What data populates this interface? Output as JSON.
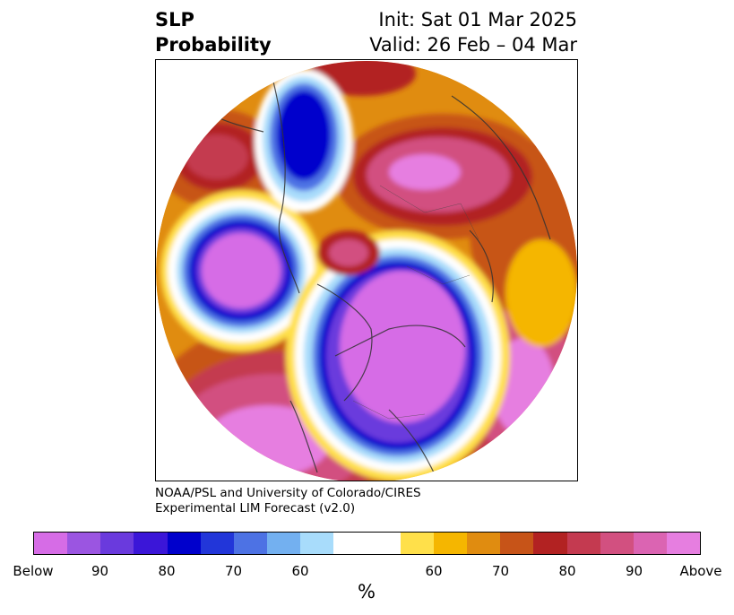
{
  "title": {
    "left_line1": "SLP",
    "left_line2": "Probability",
    "right_line1": "Init: Sat 01 Mar 2025",
    "right_line2": "Valid: 26 Feb – 04 Mar"
  },
  "credits": {
    "line1": "NOAA/PSL and University of Colorado/CIRES",
    "line2": "Experimental LIM Forecast (v2.0)"
  },
  "colorbar": {
    "unit_label": "%",
    "colors": [
      "#d66ce6",
      "#9b55e1",
      "#6a3add",
      "#3b16d8",
      "#0000cc",
      "#2236d9",
      "#4d72e4",
      "#73b0f0",
      "#a8dcfb",
      "#ffffff",
      "#ffffff",
      "#ffe04a",
      "#f5b600",
      "#e08c10",
      "#c75418",
      "#b22222",
      "#c43a50",
      "#d25080",
      "#db64b2",
      "#e67ee0"
    ],
    "tick_labels": [
      "Below",
      "90",
      "80",
      "70",
      "60",
      "60",
      "70",
      "80",
      "90",
      "Above"
    ]
  },
  "map": {
    "projection": "north-polar-stereographic",
    "palette": {
      "below_strong": "#d66ce6",
      "below_mid": "#0000cc",
      "below_weak": "#a8dcfb",
      "neutral": "#ffffff",
      "above_weak": "#f5b600",
      "above_mid": "#c75418",
      "above_strong": "#d25080",
      "above_max": "#e67ee0"
    }
  }
}
